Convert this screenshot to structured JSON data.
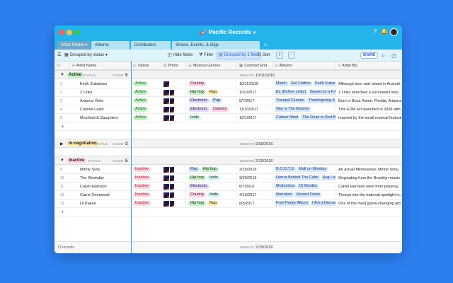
{
  "app": {
    "title": "Pacific Records"
  },
  "tabs": [
    {
      "label": "Artist Roster",
      "active": true
    },
    {
      "label": "Albums"
    },
    {
      "label": "Distributors"
    },
    {
      "label": "Shows, Events, & Gigs"
    }
  ],
  "toolbar": {
    "grouped_by": "Grouped by status",
    "hide_fields": "Hide fields",
    "filter": "Filter",
    "grouped_count": "Grouped by 1 field",
    "sort": "Sort",
    "share": "SHARE"
  },
  "columns": [
    "Artist Name",
    "Status",
    "Photo",
    "Musical Genres",
    "Contract End",
    "Albums",
    "Artist Bio"
  ],
  "groups": [
    {
      "label": "Active",
      "sublabel": "STATUS",
      "count_label": "COUNT",
      "count": "5",
      "min_label": "MINDATE",
      "min_date": "10/11/2016",
      "rows": [
        {
          "num": "1",
          "name": "Keith Suburban",
          "status": "Active",
          "genres": [
            "Country"
          ],
          "contract": "10/11/2016",
          "albums": [
            "Match",
            "Get Farther",
            "Keith Suburba"
          ],
          "bio": "Although born and raised in Australi..."
        },
        {
          "num": "2",
          "name": "2 Linkz",
          "status": "Active",
          "genres": [
            "Hip hop",
            "Rap"
          ],
          "contract": "1/31/2017",
          "albums": [
            "BL (Before Linkz)",
            "Based on a F.A."
          ],
          "bio": "2 Linkz launched a successful solo..."
        },
        {
          "num": "3",
          "name": "Arianna Verte",
          "status": "Active",
          "genres": [
            "Electronic",
            "Pop"
          ],
          "contract": "5/7/2017",
          "albums": [
            "Tranquil Female",
            "Thanksgiving & C"
          ],
          "bio": "Born in Boca Raton, Florida, Arianna..."
        },
        {
          "num": "4",
          "name": "Colonel Lazer",
          "status": "Active",
          "genres": [
            "Electronic",
            "Country"
          ],
          "contract": "11/10/2017",
          "albums": [
            "War Is The Mission"
          ],
          "bio": "This EDM act launched in 2009 with..."
        },
        {
          "num": "5",
          "name": "Mumford & Daughters",
          "status": "Active",
          "genres": [
            "Indie"
          ],
          "contract": "12/1/2017",
          "albums": [
            "Calmer Mind",
            "The Road to Red Bl"
          ],
          "bio": "Inspired by the small musical festival..."
        }
      ]
    },
    {
      "label": "In-negotiation",
      "sublabel": "STATUS",
      "count_label": "COUNT",
      "count": "3",
      "min_label": "MINDATE",
      "min_date": "9/30/2016",
      "collapsed": true,
      "rows": []
    },
    {
      "label": "Inactive",
      "sublabel": "STATUS",
      "count_label": "COUNT",
      "count": "5",
      "min_label": "MINDATE",
      "min_date": "2/15/2016",
      "rows": [
        {
          "num": "9",
          "name": "Minne Sota",
          "status": "Inactive",
          "genres": [
            "Pop",
            "Hip hop"
          ],
          "contract": "2/15/2016",
          "albums": [
            "B.O.O.T.S.",
            "Mall on Monday"
          ],
          "bio": "An actual Minnesotan, Minne Sota..."
        },
        {
          "num": "10",
          "name": "The Weekday",
          "status": "Inactive",
          "genres": [
            "Hip hop",
            "Indie"
          ],
          "contract": "3/20/2016",
          "albums": [
            "Horror Behind The Calm",
            "Hug Lan"
          ],
          "bio": "Originating from the Brooklyn music..."
        },
        {
          "num": "11",
          "name": "Calvin Harrison",
          "status": "Inactive",
          "genres": [
            "Electronic"
          ],
          "contract": "6/7/2016",
          "albums": [
            "Motionless",
            "15 Months"
          ],
          "bio": "Calvin Harrison went from passing..."
        },
        {
          "num": "12",
          "name": "Carrie Overwood",
          "status": "Inactive",
          "genres": [
            "Country",
            "Indie"
          ],
          "contract": "4/16/2017",
          "albums": [
            "Narration",
            "Rooted Down"
          ],
          "bio": "Thrown into the national spotlight in..."
        },
        {
          "num": "13",
          "name": "Lil Payne",
          "status": "Inactive",
          "genres": [
            "Hip hop",
            "Rap"
          ],
          "contract": "8/5/2017",
          "albums": [
            "Free Peezy Album",
            "I Am a Human"
          ],
          "bio": "One of the most game-changing arti..."
        }
      ]
    }
  ],
  "footer": {
    "records": "13 records",
    "min_label": "MINDATE",
    "min_date": "2/15/2016"
  },
  "genre_colors": {
    "Country": "#ffd3e6",
    "Hip hop": "#c5f0c8",
    "Rap": "#ffeab0",
    "Electronic": "#e3d9ff",
    "Pop": "#cfe4ff",
    "Indie": "#d2f2f2"
  },
  "colors": {
    "accent": "#24b3ea",
    "background": "#2d7ff0"
  }
}
